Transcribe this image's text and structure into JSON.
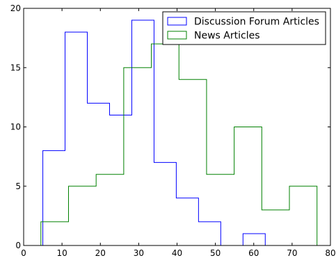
{
  "chart_data": {
    "type": "histogram",
    "xlim": [
      0,
      80
    ],
    "ylim": [
      0,
      20
    ],
    "x_ticks": [
      0,
      10,
      20,
      30,
      40,
      50,
      60,
      70,
      80
    ],
    "y_ticks": [
      0,
      5,
      10,
      15,
      20
    ],
    "legend_position": "top-right",
    "grid": false,
    "series": [
      {
        "name": "Discussion Forum Articles",
        "color": "#0000ff",
        "bin_edges": [
          5,
          10.8,
          16.6,
          22.4,
          28.2,
          34.0,
          39.8,
          45.6,
          51.4,
          57.2,
          63.0
        ],
        "counts": [
          8,
          18,
          12,
          11,
          19,
          7,
          4,
          2,
          0,
          1
        ]
      },
      {
        "name": "News Articles",
        "color": "#008000",
        "bin_edges": [
          4.5,
          11.7,
          18.9,
          26.1,
          33.3,
          40.5,
          47.7,
          54.9,
          62.1,
          69.3,
          76.5
        ],
        "counts": [
          2,
          5,
          6,
          15,
          17,
          14,
          6,
          10,
          3,
          5
        ]
      }
    ]
  }
}
